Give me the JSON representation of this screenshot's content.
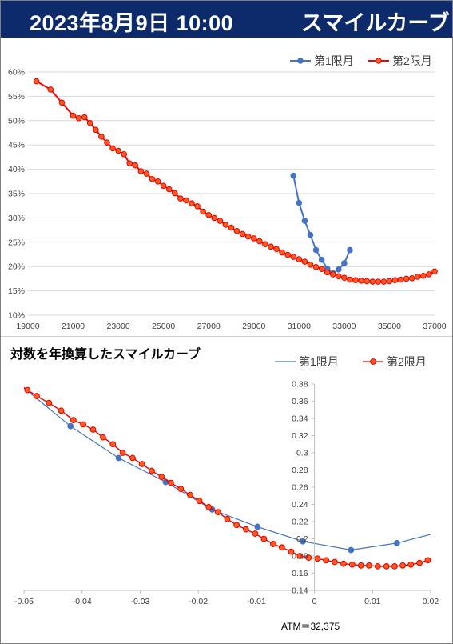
{
  "header": {
    "date": "2023年8月9日 10:00",
    "title": "スマイルカーブ"
  },
  "chart_data": [
    {
      "type": "line",
      "title": "",
      "xlim": [
        19000,
        37000
      ],
      "ylim": [
        0.1,
        0.6
      ],
      "x_ticks": [
        "19000",
        "21000",
        "23000",
        "25000",
        "27000",
        "29000",
        "31000",
        "33000",
        "35000",
        "37000"
      ],
      "y_ticks": [
        "10%",
        "15%",
        "20%",
        "25%",
        "30%",
        "35%",
        "40%",
        "45%",
        "50%",
        "55%",
        "60%"
      ],
      "grid": "horizontal",
      "legend": "top-right",
      "series": [
        {
          "name": "第1限月",
          "color": "#4472c4",
          "marker": "circle",
          "x": [
            30750,
            31000,
            31250,
            31500,
            31750,
            32000,
            32250,
            32500,
            32750,
            33000,
            33250
          ],
          "y": [
            0.387,
            0.331,
            0.294,
            0.265,
            0.234,
            0.214,
            0.196,
            0.186,
            0.194,
            0.207,
            0.234
          ]
        },
        {
          "name": "第2限月",
          "color": "#ff0000",
          "marker": "circle",
          "x": [
            19375,
            20000,
            20500,
            21000,
            21250,
            21500,
            21750,
            22000,
            22250,
            22500,
            22750,
            23000,
            23250,
            23500,
            23750,
            24000,
            24250,
            24500,
            24750,
            25000,
            25250,
            25500,
            25750,
            26000,
            26250,
            26500,
            26750,
            27000,
            27250,
            27500,
            27750,
            28000,
            28250,
            28500,
            28750,
            29000,
            29250,
            29500,
            29750,
            30000,
            30250,
            30500,
            30750,
            31000,
            31250,
            31500,
            31750,
            32000,
            32250,
            32500,
            32750,
            33000,
            33250,
            33500,
            33750,
            34000,
            34250,
            34500,
            34750,
            35000,
            35250,
            35500,
            35750,
            36000,
            36250,
            36500,
            36750,
            37000
          ],
          "y": [
            0.581,
            0.564,
            0.537,
            0.51,
            0.505,
            0.507,
            0.495,
            0.481,
            0.467,
            0.455,
            0.443,
            0.438,
            0.431,
            0.412,
            0.408,
            0.396,
            0.391,
            0.38,
            0.375,
            0.366,
            0.359,
            0.351,
            0.34,
            0.336,
            0.33,
            0.324,
            0.313,
            0.306,
            0.3,
            0.294,
            0.286,
            0.28,
            0.273,
            0.267,
            0.262,
            0.258,
            0.252,
            0.246,
            0.241,
            0.236,
            0.229,
            0.224,
            0.22,
            0.215,
            0.21,
            0.204,
            0.199,
            0.195,
            0.188,
            0.184,
            0.18,
            0.177,
            0.173,
            0.172,
            0.171,
            0.17,
            0.169,
            0.169,
            0.169,
            0.17,
            0.172,
            0.173,
            0.175,
            0.176,
            0.179,
            0.181,
            0.184,
            0.19
          ]
        }
      ]
    },
    {
      "type": "line",
      "title": "対数を年換算したスマイルカーブ",
      "xlim": [
        -0.05,
        0.02
      ],
      "ylim": [
        0.14,
        0.38
      ],
      "x_ticks": [
        "-0.05",
        "-0.04",
        "-0.03",
        "-0.02",
        "-0.01",
        "0",
        "0.01",
        "0.02"
      ],
      "y_ticks": [
        "0.14",
        "0.16",
        "0.18",
        "0.2",
        "0.22",
        "0.24",
        "0.26",
        "0.28",
        "0.3",
        "0.32",
        "0.34",
        "0.36",
        "0.38"
      ],
      "grid": "none",
      "legend": "top-right",
      "annotation": "ATM＝32,375",
      "series": [
        {
          "name": "第1限月",
          "color": "#4472c4",
          "marker": "circle",
          "x": [
            -0.0505,
            -0.042,
            -0.0337,
            -0.0256,
            -0.0176,
            -0.0098,
            -0.002,
            0.0063,
            0.0142,
            0.0205
          ],
          "y": [
            0.378,
            0.331,
            0.294,
            0.266,
            0.234,
            0.214,
            0.197,
            0.187,
            0.195,
            0.206
          ],
          "marker_indices": [
            1,
            2,
            3,
            4,
            5,
            6,
            7,
            8
          ]
        },
        {
          "name": "第2限月",
          "color": "#ff0000",
          "marker": "circle",
          "x": [
            -0.0505,
            -0.0494,
            -0.0478,
            -0.0457,
            -0.0436,
            -0.0415,
            -0.0398,
            -0.0381,
            -0.0364,
            -0.0347,
            -0.033,
            -0.0313,
            -0.0297,
            -0.028,
            -0.0263,
            -0.0247,
            -0.023,
            -0.0214,
            -0.0198,
            -0.0182,
            -0.0166,
            -0.015,
            -0.0134,
            -0.0118,
            -0.0102,
            -0.0087,
            -0.0071,
            -0.0056,
            -0.004,
            -0.0025,
            -0.001,
            0.0005,
            0.002,
            0.0035,
            0.005,
            0.0065,
            0.008,
            0.0094,
            0.0109,
            0.0124,
            0.0138,
            0.0152,
            0.0166,
            0.0181,
            0.0195,
            0.0206
          ],
          "y": [
            0.378,
            0.373,
            0.366,
            0.358,
            0.349,
            0.338,
            0.333,
            0.327,
            0.318,
            0.31,
            0.3,
            0.294,
            0.287,
            0.279,
            0.272,
            0.265,
            0.258,
            0.251,
            0.244,
            0.237,
            0.231,
            0.223,
            0.216,
            0.211,
            0.206,
            0.2,
            0.194,
            0.19,
            0.185,
            0.18,
            0.178,
            0.177,
            0.175,
            0.173,
            0.171,
            0.17,
            0.169,
            0.169,
            0.168,
            0.168,
            0.168,
            0.169,
            0.17,
            0.172,
            0.175,
            0.176
          ],
          "marker_indices": [
            1,
            2,
            3,
            4,
            5,
            6,
            7,
            8,
            9,
            10,
            11,
            12,
            13,
            14,
            15,
            16,
            17,
            18,
            19,
            20,
            21,
            22,
            23,
            24,
            25,
            26,
            27,
            28,
            29,
            30,
            31,
            32,
            33,
            34,
            35,
            36,
            37,
            38,
            39,
            40,
            41,
            42,
            43,
            44,
            45
          ]
        }
      ]
    }
  ]
}
